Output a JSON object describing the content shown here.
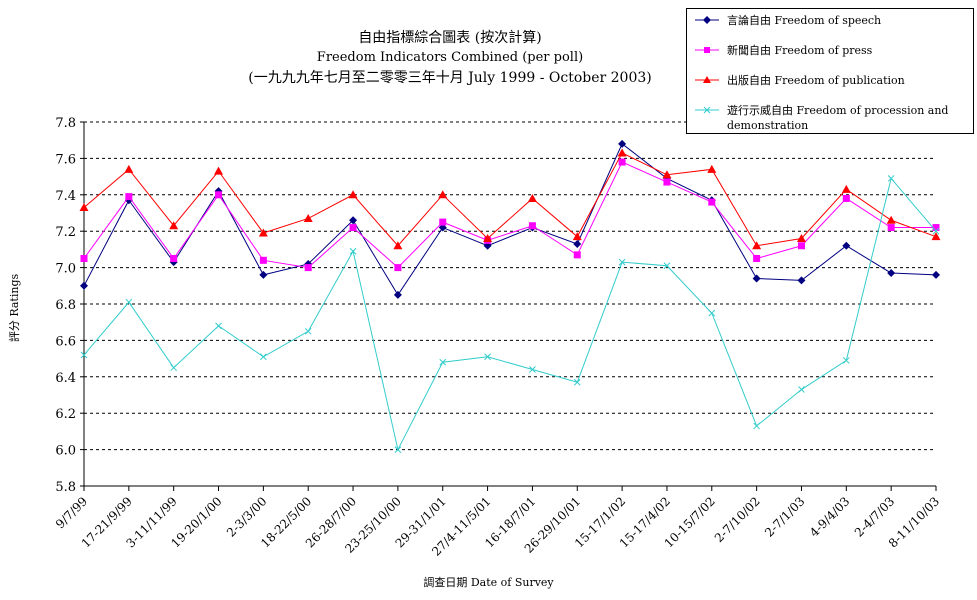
{
  "chart_data": {
    "type": "line",
    "title": "自由指標綜合圖表 (按次計算)",
    "subtitle_en": "Freedom Indicators Combined (per poll)",
    "subtitle_period": "(一九九九年七月至二零零三年十月 July 1999 - October 2003)",
    "xlabel": "調查日期 Date of Survey",
    "ylabel": "評分 Ratings",
    "ylim": [
      5.8,
      7.8
    ],
    "yticks": [
      "5.8",
      "6.0",
      "6.2",
      "6.4",
      "6.6",
      "6.8",
      "7.0",
      "7.2",
      "7.4",
      "7.6",
      "7.8"
    ],
    "grid": "horizontal dashed",
    "legend_position": "top-right",
    "x_tick_labels": [
      "9/7/99",
      "17-21/9/99",
      "3-11/11/99",
      "19-20/1/00",
      "2-3/3/00",
      "18-22/5/00",
      "26-28/7/00",
      "23-25/10/00",
      "29-31/1/01",
      "27/4-11/5/01",
      "16-18/7/01",
      "26-29/10/01",
      "15-17/1/02",
      "15-17/4/02",
      "10-15/7/02",
      "2-7/10/02",
      "2-7/1/03",
      "4-9/4/03",
      "2-4/7/03",
      "8-11/10/03"
    ],
    "categories": [
      "9/7/99",
      "17-21/9/99",
      "3-11/11/99",
      "19-20/1/00",
      "2-3/3/00",
      "18-22/5/00",
      "26-28/7/00",
      "23-25/10/00",
      "29-31/1/01",
      "27/4-11/5/01",
      "16-18/7/01",
      "26-29/10/01",
      "15-17/1/02",
      "15-17/4/02",
      "10-15/7/02",
      "2-7/10/02",
      "2-7/1/03",
      "4-9/4/03",
      "2-4/7/03",
      "8-11/10/03"
    ],
    "series": [
      {
        "name": "言論自由 Freedom of speech",
        "color": "#000080",
        "marker": "diamond",
        "values": [
          6.9,
          7.37,
          7.03,
          7.42,
          6.96,
          7.02,
          7.26,
          6.85,
          7.22,
          7.12,
          7.22,
          7.13,
          7.68,
          7.49,
          7.37,
          6.94,
          6.93,
          7.12,
          6.97,
          6.96
        ]
      },
      {
        "name": "新聞自由 Freedom of press",
        "color": "#ff00ff",
        "marker": "square",
        "values": [
          7.05,
          7.39,
          7.05,
          7.4,
          7.04,
          7.0,
          7.22,
          7.0,
          7.25,
          7.15,
          7.23,
          7.07,
          7.58,
          7.47,
          7.36,
          7.05,
          7.12,
          7.38,
          7.22,
          7.22
        ]
      },
      {
        "name": "出版自由 Freedom of publication",
        "color": "#ff0000",
        "marker": "triangle",
        "values": [
          7.33,
          7.54,
          7.23,
          7.53,
          7.19,
          7.27,
          7.4,
          7.12,
          7.4,
          7.16,
          7.38,
          7.17,
          7.63,
          7.51,
          7.54,
          7.12,
          7.16,
          7.43,
          7.26,
          7.17
        ]
      },
      {
        "name": "遊行示威自由 Freedom of procession and demonstration",
        "color": "#33cccc",
        "marker": "x",
        "values": [
          6.52,
          6.81,
          6.45,
          6.68,
          6.51,
          6.65,
          7.09,
          6.0,
          6.48,
          6.51,
          6.44,
          6.37,
          7.03,
          7.01,
          6.75,
          6.13,
          6.33,
          6.49,
          7.49,
          7.2
        ]
      }
    ]
  }
}
